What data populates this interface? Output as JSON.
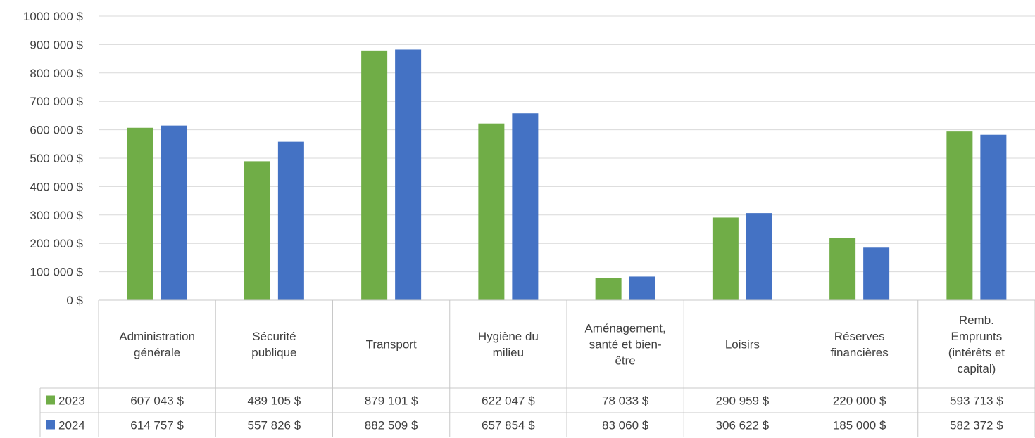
{
  "chart_data": {
    "type": "bar",
    "title": "",
    "xlabel": "",
    "ylabel": "",
    "ylim": [
      0,
      1000000
    ],
    "yticks": [
      0,
      100000,
      200000,
      300000,
      400000,
      500000,
      600000,
      700000,
      800000,
      900000,
      1000000
    ],
    "ytick_labels": [
      "0 $",
      "100 000 $",
      "200 000 $",
      "300 000 $",
      "400 000 $",
      "500 000 $",
      "600 000 $",
      "700 000 $",
      "800 000 $",
      "900 000 $",
      "1000 000 $"
    ],
    "grid": true,
    "legend": "data-table",
    "categories": [
      [
        "Administration",
        "générale"
      ],
      [
        "Sécurité",
        "publique"
      ],
      [
        "Transport"
      ],
      [
        "Hygiène du",
        "milieu"
      ],
      [
        "Aménagement,",
        "santé et bien-",
        "être"
      ],
      [
        "Loisirs"
      ],
      [
        "Réserves",
        "financières"
      ],
      [
        "Remb.",
        "Emprunts",
        "(intérêts et",
        "capital)"
      ]
    ],
    "series": [
      {
        "name": "2023",
        "color": "#70AD47",
        "values": [
          607043,
          489105,
          879101,
          622047,
          78033,
          290959,
          220000,
          593713
        ],
        "labels": [
          "607 043 $",
          "489 105 $",
          "879 101 $",
          "622 047 $",
          "78 033 $",
          "290 959 $",
          "220 000 $",
          "593 713 $"
        ]
      },
      {
        "name": "2024",
        "color": "#4472C4",
        "values": [
          614757,
          557826,
          882509,
          657854,
          83060,
          306622,
          185000,
          582372
        ],
        "labels": [
          "614 757 $",
          "557 826 $",
          "882 509 $",
          "657 854 $",
          "83 060 $",
          "306 622 $",
          "185 000 $",
          "582 372 $"
        ]
      }
    ]
  }
}
